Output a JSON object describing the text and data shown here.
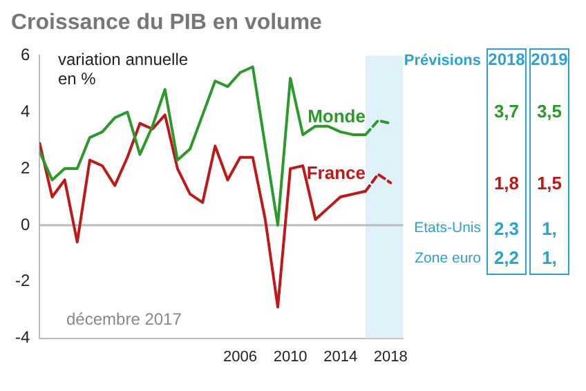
{
  "chart_data": [
    {
      "type": "line",
      "title": "Croissance du PIB en volume",
      "ylabel": "variation annuelle en %",
      "annotations": [
        "décembre 2017"
      ],
      "xlim": [
        1990,
        2019
      ],
      "xticks": [
        2006,
        2010,
        2014,
        2018
      ],
      "ylim": [
        -4,
        6
      ],
      "yticks": [
        -4,
        -2,
        0,
        2,
        4,
        6
      ],
      "grid": false,
      "legend": false,
      "marker": "none",
      "ref_lines": [
        {
          "axis": "y",
          "value": 0,
          "color": "#bbbbbb"
        }
      ],
      "bands": [
        {
          "axis": "x",
          "from": 2016,
          "to": 2019,
          "color": "#dff2fa"
        }
      ],
      "series": [
        {
          "name": "Monde",
          "color": "#2a9a2a",
          "line_style": "solid",
          "x": [
            1990,
            1991,
            1992,
            1993,
            1994,
            1995,
            1996,
            1997,
            1998,
            1999,
            2000,
            2001,
            2002,
            2003,
            2004,
            2005,
            2006,
            2007,
            2008,
            2009,
            2010,
            2011,
            2012,
            2013,
            2014,
            2015,
            2016
          ],
          "values": [
            2.6,
            1.6,
            2.0,
            2.0,
            3.1,
            3.3,
            3.8,
            4.0,
            2.5,
            3.5,
            4.8,
            2.3,
            2.7,
            3.9,
            5.1,
            4.9,
            5.4,
            5.6,
            2.8,
            0.0,
            5.2,
            3.2,
            3.5,
            3.5,
            3.3,
            3.2,
            3.2
          ]
        },
        {
          "color": "#2a9a2a",
          "line_style": "dashed",
          "x": [
            2016,
            2017,
            2018
          ],
          "values": [
            3.2,
            3.7,
            3.6
          ]
        },
        {
          "name": "France",
          "color": "#c01818",
          "line_style": "solid",
          "x": [
            1990,
            1991,
            1992,
            1993,
            1994,
            1995,
            1996,
            1997,
            1998,
            1999,
            2000,
            2001,
            2002,
            2003,
            2004,
            2005,
            2006,
            2007,
            2008,
            2009,
            2010,
            2011,
            2012,
            2013,
            2014,
            2015,
            2016
          ],
          "values": [
            2.9,
            1.0,
            1.6,
            -0.6,
            2.3,
            2.1,
            1.4,
            2.4,
            3.6,
            3.4,
            3.9,
            2.0,
            1.1,
            0.8,
            2.8,
            1.6,
            2.4,
            2.4,
            0.2,
            -2.9,
            2.0,
            2.1,
            0.2,
            0.6,
            1.0,
            1.1,
            1.2
          ]
        },
        {
          "color": "#c01818",
          "line_style": "dashed",
          "x": [
            2016,
            2017,
            2018
          ],
          "values": [
            1.2,
            1.8,
            1.5
          ]
        }
      ]
    },
    {
      "type": "other",
      "title": "Prévisions",
      "colors": [
        "#29a3d6",
        "#2a9a2a",
        "#c01818",
        "#29a3d6",
        "#29a3d6"
      ],
      "annotations": [
        "2018",
        "2019",
        "3,7",
        "3,5",
        "1,8",
        "1,5",
        "Etats-Unis",
        "2,3",
        "1,",
        "Zone euro",
        "2,2",
        "1,"
      ]
    }
  ]
}
